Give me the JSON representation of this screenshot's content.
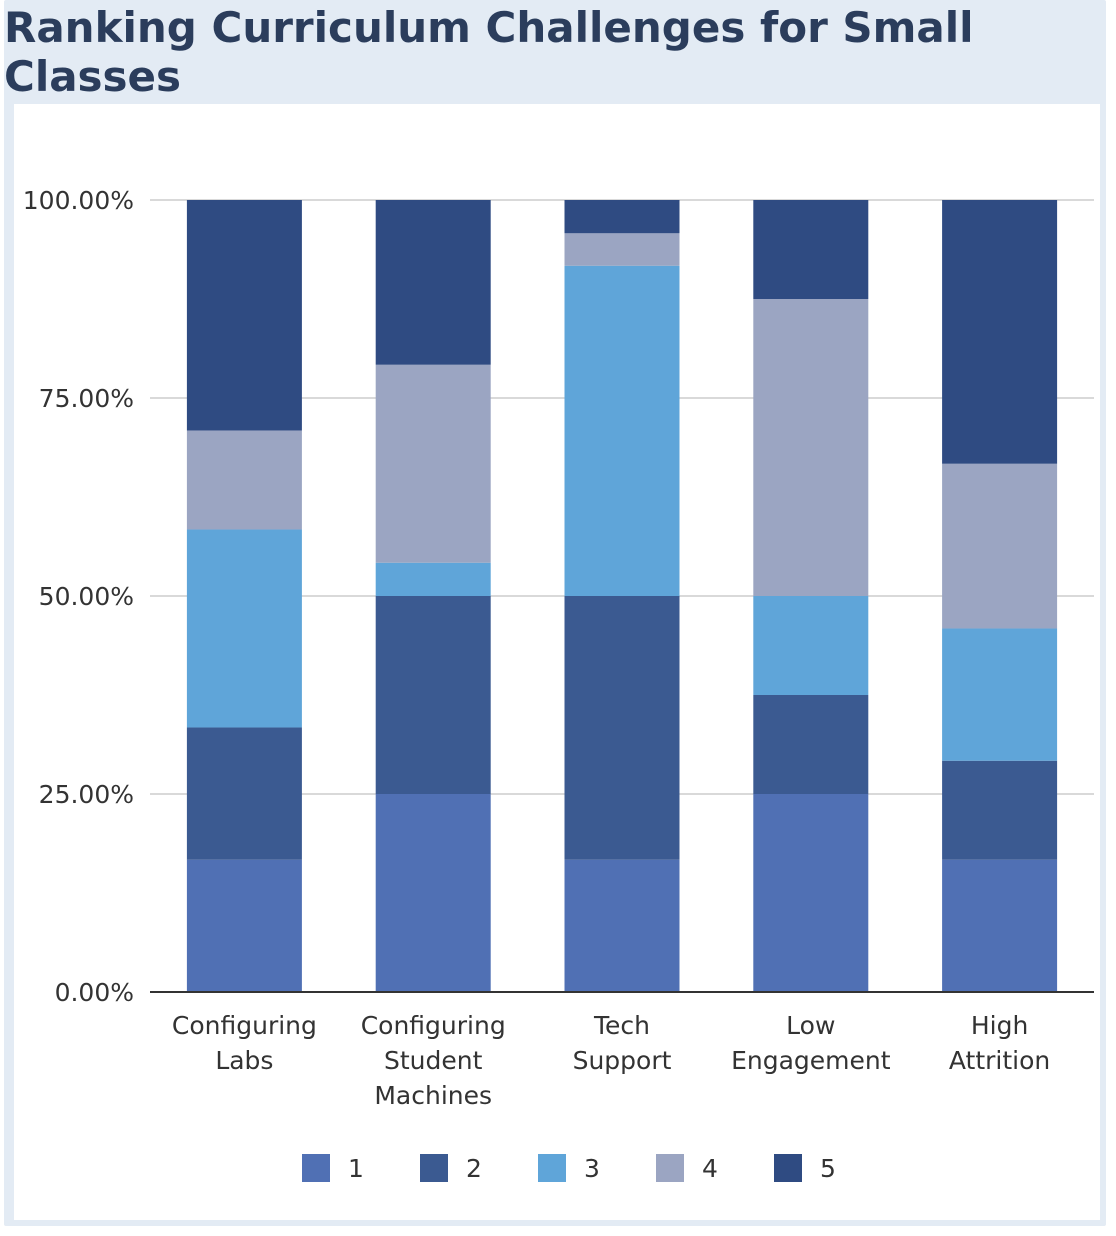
{
  "chart_data": {
    "type": "bar",
    "stacked": true,
    "title": "Ranking Curriculum Challenges for Small Classes",
    "xlabel": "",
    "ylabel": "",
    "ylim": [
      0,
      1
    ],
    "y_ticks": [
      "0.00%",
      "25.00%",
      "50.00%",
      "75.00%",
      "100.00%"
    ],
    "grid": true,
    "legend_position": "bottom",
    "categories": [
      [
        "Configuring",
        "Labs"
      ],
      [
        "Configuring",
        "Student",
        "Machines"
      ],
      [
        "Tech",
        "Support"
      ],
      [
        "Low",
        "Engagement"
      ],
      [
        "High",
        "Attrition"
      ]
    ],
    "series": [
      {
        "name": "1",
        "color": "#5070b4",
        "values": [
          0.167,
          0.25,
          0.167,
          0.25,
          0.167
        ]
      },
      {
        "name": "2",
        "color": "#3b5a91",
        "values": [
          0.167,
          0.25,
          0.333,
          0.125,
          0.125
        ]
      },
      {
        "name": "3",
        "color": "#5fa5d9",
        "values": [
          0.25,
          0.042,
          0.417,
          0.125,
          0.167
        ]
      },
      {
        "name": "4",
        "color": "#9ba5c2",
        "values": [
          0.125,
          0.25,
          0.041,
          0.375,
          0.208
        ]
      },
      {
        "name": "5",
        "color": "#2f4b82",
        "values": [
          0.291,
          0.208,
          0.042,
          0.125,
          0.333
        ]
      }
    ]
  }
}
